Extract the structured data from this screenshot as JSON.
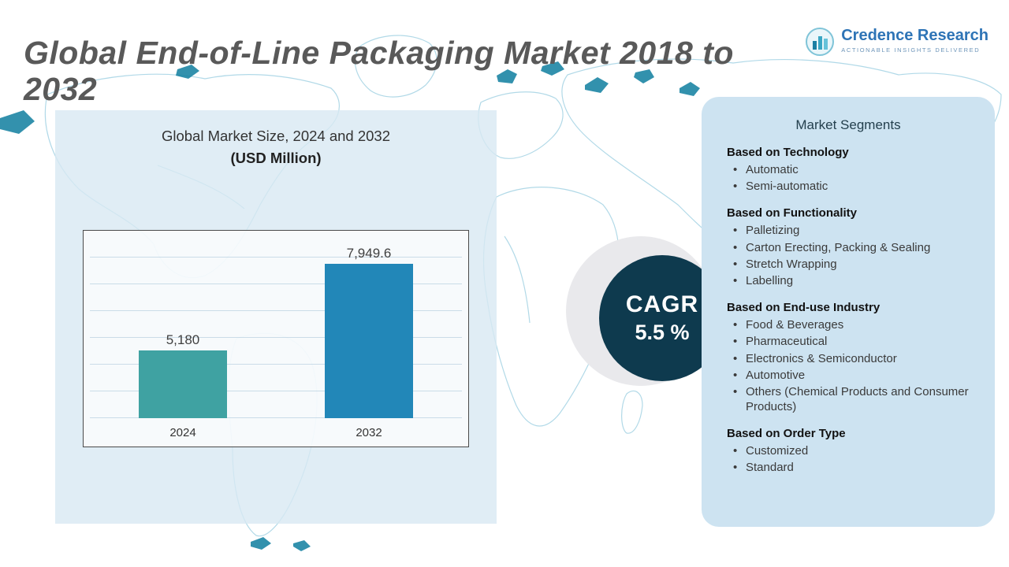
{
  "page": {
    "title": "Global End-of-Line Packaging Market 2018 to 2032"
  },
  "logo": {
    "name": "Credence Research",
    "tagline": "Actionable Insights Delivered"
  },
  "chart_panel": {
    "title": "Global Market Size, 2024 and 2032",
    "subtitle": "(USD Million)"
  },
  "chart_data": {
    "type": "bar",
    "title": "Global Market Size, 2024 and 2032 (USD Million)",
    "categories": [
      "2024",
      "2032"
    ],
    "values": [
      5180,
      7949.6
    ],
    "value_labels": [
      "5,180",
      "7,949.6"
    ],
    "bar_colors": [
      "#3fa2a2",
      "#2287b8"
    ],
    "ylim": [
      3000,
      8200
    ],
    "grid": true,
    "legend": "none"
  },
  "cagr": {
    "label": "CAGR",
    "value": "5.5 %"
  },
  "segments": {
    "title": "Market Segments",
    "groups": [
      {
        "heading": "Based on Technology",
        "items": [
          "Automatic",
          "Semi-automatic"
        ]
      },
      {
        "heading": "Based on Functionality",
        "items": [
          "Palletizing",
          "Carton Erecting, Packing & Sealing",
          "Stretch Wrapping",
          "Labelling"
        ]
      },
      {
        "heading": "Based on End-use Industry",
        "items": [
          "Food & Beverages",
          "Pharmaceutical",
          "Electronics & Semiconductor",
          "Automotive",
          "Others (Chemical Products and Consumer Products)"
        ]
      },
      {
        "heading": "Based on Order Type",
        "items": [
          "Customized",
          "Standard"
        ]
      }
    ]
  },
  "colors": {
    "logo-blue": "#2e74b6",
    "chart-panel": "rgba(216,232,243,0.8)",
    "segments-panel": "#cde3f1",
    "cagr-bg": "#0e3a4e",
    "map-line": "#a9d5e5",
    "map-fill": "#0f7e9f",
    "title-gray": "#595959"
  }
}
